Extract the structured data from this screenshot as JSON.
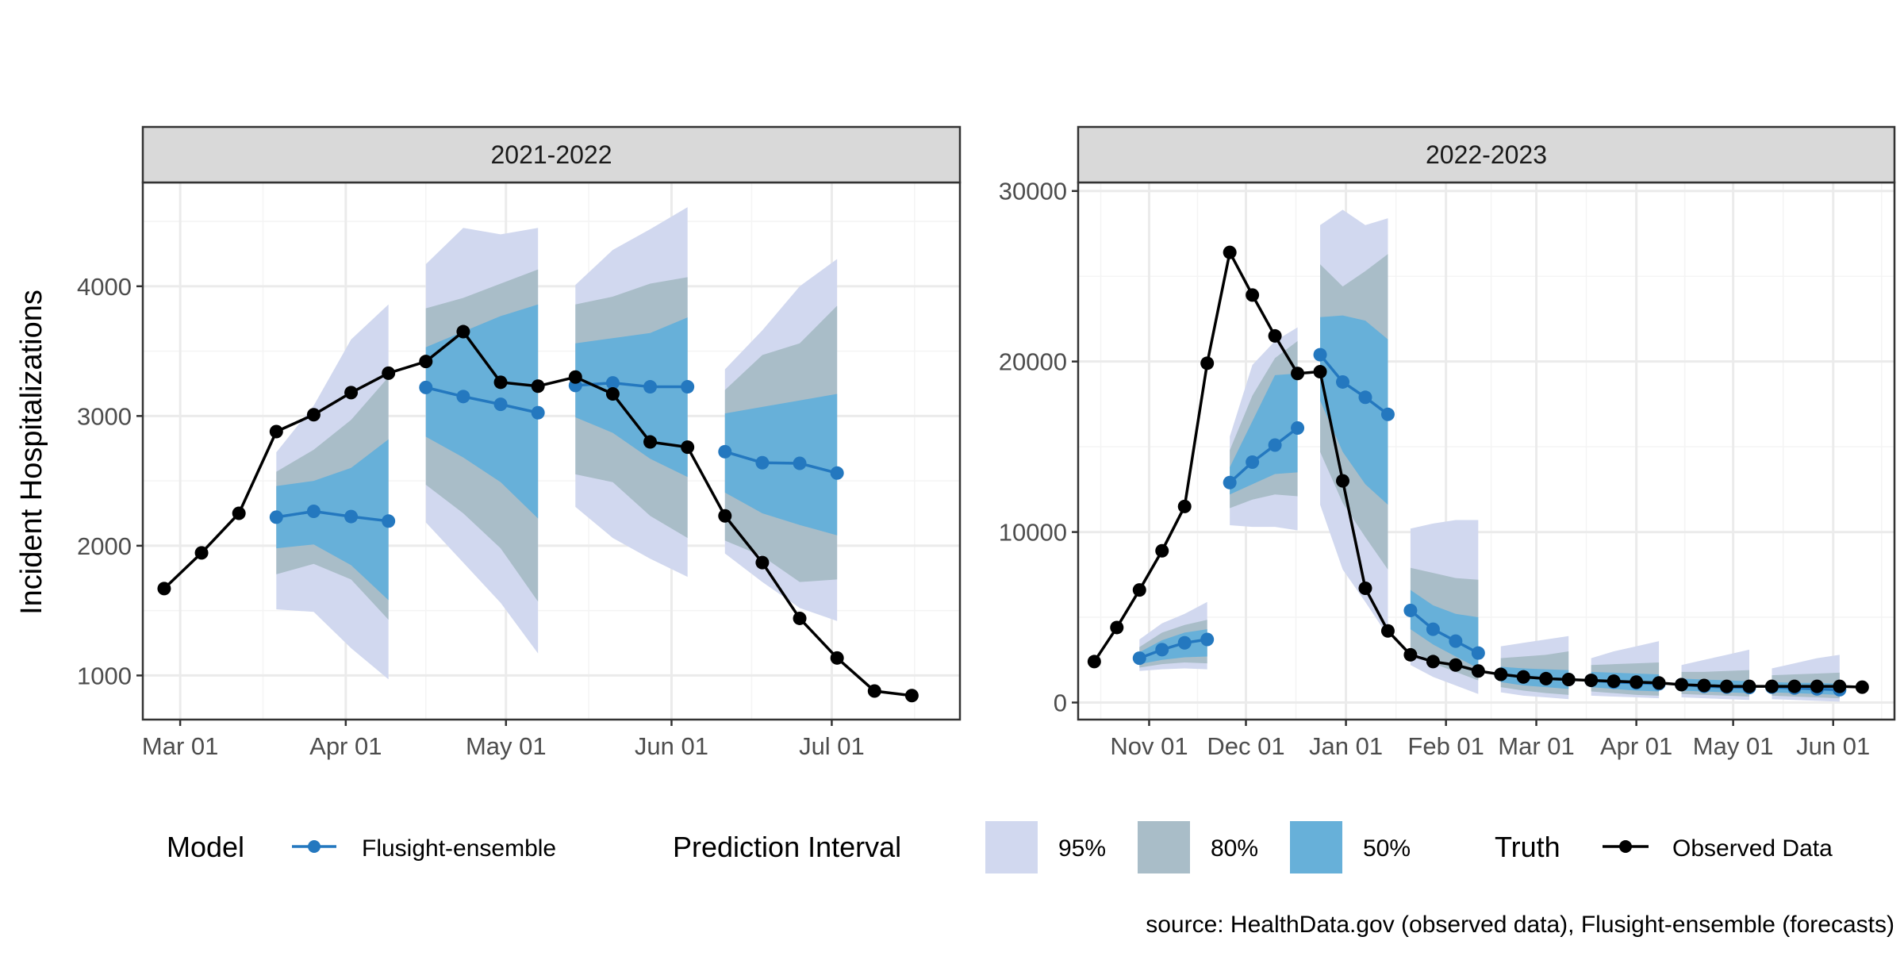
{
  "colors": {
    "pi95": "#d1d8ef",
    "pi80": "#a9bdc8",
    "pi50": "#67b0d9",
    "forecast": "#2478bf",
    "truth": "#000000",
    "strip": "#d9d9d9",
    "grid_major": "#ebebeb",
    "grid_minor": "#f4f4f4",
    "panel_border": "#333333",
    "axis_text": "#4d4d4d"
  },
  "ylabel": "Incident Hospitalizations",
  "source": "source: HealthData.gov (observed data), Flusight-ensemble (forecasts)",
  "legend": {
    "model_title": "Model",
    "model_item": "Flusight-ensemble",
    "pi_title": "Prediction Interval",
    "pi_items": [
      "95%",
      "80%",
      "50%"
    ],
    "truth_title": "Truth",
    "truth_item": "Observed Data"
  },
  "chart_data": [
    {
      "type": "line",
      "title": "2021-2022",
      "xlabel": "",
      "ylabel": "Incident Hospitalizations",
      "xlim": [
        "2022-02-22",
        "2022-07-25"
      ],
      "ylim": [
        660,
        4800
      ],
      "x_ticks": [
        "Mar 01",
        "Apr 01",
        "May 01",
        "Jun 01",
        "Jul 01"
      ],
      "x_tick_dates": [
        "2022-03-01",
        "2022-04-01",
        "2022-05-01",
        "2022-06-01",
        "2022-07-01"
      ],
      "y_ticks": [
        1000,
        2000,
        3000,
        4000
      ],
      "grid": true,
      "truth": {
        "name": "Observed Data",
        "x": [
          "2022-02-26",
          "2022-03-05",
          "2022-03-12",
          "2022-03-19",
          "2022-03-26",
          "2022-04-02",
          "2022-04-09",
          "2022-04-16",
          "2022-04-23",
          "2022-04-30",
          "2022-05-07",
          "2022-05-14",
          "2022-05-21",
          "2022-05-28",
          "2022-06-04",
          "2022-06-11",
          "2022-06-18",
          "2022-06-25",
          "2022-07-02",
          "2022-07-09",
          "2022-07-16"
        ],
        "y": [
          1670,
          1945,
          2250,
          2880,
          3010,
          3180,
          3330,
          3420,
          3650,
          3260,
          3230,
          3300,
          3170,
          2800,
          2760,
          2230,
          1870,
          1440,
          1135,
          880,
          845
        ]
      },
      "forecasts": [
        {
          "x": [
            "2022-03-19",
            "2022-03-26",
            "2022-04-02",
            "2022-04-09"
          ],
          "median": [
            2220,
            2265,
            2225,
            2190
          ],
          "pi50": [
            [
              1980,
              2460
            ],
            [
              2010,
              2500
            ],
            [
              1850,
              2600
            ],
            [
              1580,
              2820
            ]
          ],
          "pi80": [
            [
              1780,
              2570
            ],
            [
              1860,
              2740
            ],
            [
              1740,
              2970
            ],
            [
              1430,
              3300
            ]
          ],
          "pi95": [
            [
              1510,
              2720
            ],
            [
              1490,
              3080
            ],
            [
              1210,
              3590
            ],
            [
              970,
              3860
            ]
          ]
        },
        {
          "x": [
            "2022-04-16",
            "2022-04-23",
            "2022-04-30",
            "2022-05-07"
          ],
          "median": [
            3220,
            3150,
            3090,
            3025
          ],
          "pi50": [
            [
              2840,
              3530
            ],
            [
              2680,
              3650
            ],
            [
              2490,
              3770
            ],
            [
              2210,
              3860
            ]
          ],
          "pi80": [
            [
              2470,
              3830
            ],
            [
              2250,
              3910
            ],
            [
              1980,
              4020
            ],
            [
              1570,
              4130
            ]
          ],
          "pi95": [
            [
              2180,
              4170
            ],
            [
              1870,
              4450
            ],
            [
              1560,
              4400
            ],
            [
              1170,
              4450
            ]
          ]
        },
        {
          "x": [
            "2022-05-14",
            "2022-05-21",
            "2022-05-28",
            "2022-06-04"
          ],
          "median": [
            3235,
            3255,
            3225,
            3225
          ],
          "pi50": [
            [
              2990,
              3560
            ],
            [
              2870,
              3600
            ],
            [
              2670,
              3640
            ],
            [
              2530,
              3760
            ]
          ],
          "pi80": [
            [
              2550,
              3860
            ],
            [
              2490,
              3920
            ],
            [
              2230,
              4020
            ],
            [
              2060,
              4070
            ]
          ],
          "pi95": [
            [
              2300,
              4010
            ],
            [
              2060,
              4280
            ],
            [
              1900,
              4440
            ],
            [
              1760,
              4610
            ]
          ]
        },
        {
          "x": [
            "2022-06-11",
            "2022-06-18",
            "2022-06-25",
            "2022-07-02"
          ],
          "median": [
            2725,
            2640,
            2635,
            2560
          ],
          "pi50": [
            [
              2410,
              3020
            ],
            [
              2250,
              3070
            ],
            [
              2160,
              3120
            ],
            [
              2080,
              3170
            ]
          ],
          "pi80": [
            [
              2040,
              3200
            ],
            [
              1920,
              3470
            ],
            [
              1720,
              3560
            ],
            [
              1740,
              3850
            ]
          ],
          "pi95": [
            [
              1940,
              3360
            ],
            [
              1720,
              3660
            ],
            [
              1520,
              4000
            ],
            [
              1420,
              4210
            ]
          ]
        }
      ]
    },
    {
      "type": "line",
      "title": "2022-2023",
      "xlabel": "",
      "ylabel": "Incident Hospitalizations",
      "xlim": [
        "2022-10-10",
        "2023-06-20"
      ],
      "ylim": [
        -1000,
        30500
      ],
      "x_ticks": [
        "Nov 01",
        "Dec 01",
        "Jan 01",
        "Feb 01",
        "Mar 01",
        "Apr 01",
        "May 01",
        "Jun 01"
      ],
      "x_tick_dates": [
        "2022-11-01",
        "2022-12-01",
        "2023-01-01",
        "2023-02-01",
        "2023-03-01",
        "2023-04-01",
        "2023-05-01",
        "2023-06-01"
      ],
      "y_ticks": [
        0,
        10000,
        20000,
        30000
      ],
      "grid": true,
      "truth": {
        "name": "Observed Data",
        "x": [
          "2022-10-15",
          "2022-10-22",
          "2022-10-29",
          "2022-11-05",
          "2022-11-12",
          "2022-11-19",
          "2022-11-26",
          "2022-12-03",
          "2022-12-10",
          "2022-12-17",
          "2022-12-24",
          "2022-12-31",
          "2023-01-07",
          "2023-01-14",
          "2023-01-21",
          "2023-01-28",
          "2023-02-04",
          "2023-02-11",
          "2023-02-18",
          "2023-02-25",
          "2023-03-04",
          "2023-03-11",
          "2023-03-18",
          "2023-03-25",
          "2023-04-01",
          "2023-04-08",
          "2023-04-15",
          "2023-04-22",
          "2023-04-29",
          "2023-05-06",
          "2023-05-13",
          "2023-05-20",
          "2023-05-27",
          "2023-06-03",
          "2023-06-10"
        ],
        "y": [
          2400,
          4400,
          6600,
          8900,
          11500,
          19900,
          26400,
          23900,
          21500,
          19300,
          19400,
          13000,
          6700,
          4200,
          2800,
          2400,
          2200,
          1850,
          1650,
          1500,
          1400,
          1350,
          1300,
          1250,
          1200,
          1150,
          1050,
          1000,
          950,
          950,
          950,
          950,
          950,
          950,
          900
        ]
      },
      "forecasts": [
        {
          "x": [
            "2022-10-29",
            "2022-11-05",
            "2022-11-12",
            "2022-11-19"
          ],
          "median": [
            2600,
            3100,
            3500,
            3700
          ],
          "pi50": [
            [
              2250,
              2950
            ],
            [
              2500,
              3650
            ],
            [
              2650,
              4100
            ],
            [
              2700,
              4300
            ]
          ],
          "pi80": [
            [
              2050,
              3250
            ],
            [
              2250,
              4100
            ],
            [
              2350,
              4550
            ],
            [
              2300,
              4850
            ]
          ],
          "pi95": [
            [
              1850,
              3700
            ],
            [
              1950,
              4650
            ],
            [
              2000,
              5200
            ],
            [
              1950,
              5900
            ]
          ]
        },
        {
          "x": [
            "2022-11-26",
            "2022-12-03",
            "2022-12-10",
            "2022-12-17"
          ],
          "median": [
            12900,
            14100,
            15100,
            16100
          ],
          "pi50": [
            [
              12200,
              13800
            ],
            [
              12800,
              16500
            ],
            [
              13400,
              19200
            ],
            [
              13500,
              19300
            ]
          ],
          "pi80": [
            [
              11400,
              14800
            ],
            [
              11900,
              18000
            ],
            [
              12200,
              20200
            ],
            [
              12100,
              21200
            ]
          ],
          "pi95": [
            [
              10400,
              15600
            ],
            [
              10300,
              19800
            ],
            [
              10300,
              21200
            ],
            [
              10100,
              22000
            ]
          ]
        },
        {
          "x": [
            "2022-12-24",
            "2022-12-31",
            "2023-01-07",
            "2023-01-14"
          ],
          "median": [
            20400,
            18800,
            17900,
            16900
          ],
          "pi50": [
            [
              17700,
              22600
            ],
            [
              14700,
              22700
            ],
            [
              12800,
              22400
            ],
            [
              11600,
              21300
            ]
          ],
          "pi80": [
            [
              14700,
              25700
            ],
            [
              11700,
              24400
            ],
            [
              9700,
              25300
            ],
            [
              7800,
              26300
            ]
          ],
          "pi95": [
            [
              11600,
              28000
            ],
            [
              7800,
              28900
            ],
            [
              5900,
              28000
            ],
            [
              3900,
              28400
            ]
          ]
        },
        {
          "x": [
            "2023-01-21",
            "2023-01-28",
            "2023-02-04",
            "2023-02-11"
          ],
          "median": [
            5400,
            4300,
            3600,
            2900
          ],
          "pi50": [
            [
              4300,
              6600
            ],
            [
              3400,
              5700
            ],
            [
              2700,
              5200
            ],
            [
              2000,
              5000
            ]
          ],
          "pi80": [
            [
              3100,
              7900
            ],
            [
              2300,
              7600
            ],
            [
              1800,
              7300
            ],
            [
              1300,
              7200
            ]
          ],
          "pi95": [
            [
              2200,
              10200
            ],
            [
              1500,
              10500
            ],
            [
              1000,
              10700
            ],
            [
              500,
              10700
            ]
          ]
        },
        {
          "x": [
            "2023-02-18",
            "2023-02-25",
            "2023-03-04",
            "2023-03-11"
          ],
          "median": [
            1650,
            1500,
            1400,
            1350
          ],
          "pi50": [
            [
              1200,
              2100
            ],
            [
              1000,
              2000
            ],
            [
              900,
              1950
            ],
            [
              800,
              1900
            ]
          ],
          "pi80": [
            [
              900,
              2600
            ],
            [
              700,
              2700
            ],
            [
              550,
              2800
            ],
            [
              450,
              3000
            ]
          ],
          "pi95": [
            [
              600,
              3300
            ],
            [
              400,
              3500
            ],
            [
              300,
              3700
            ],
            [
              200,
              3900
            ]
          ]
        },
        {
          "x": [
            "2023-03-18",
            "2023-03-25",
            "2023-04-01",
            "2023-04-08"
          ],
          "median": [
            1300,
            1200,
            1150,
            1100
          ],
          "pi50": [
            [
              900,
              1800
            ],
            [
              800,
              1750
            ],
            [
              700,
              1700
            ],
            [
              650,
              1650
            ]
          ],
          "pi80": [
            [
              650,
              2200
            ],
            [
              550,
              2250
            ],
            [
              450,
              2300
            ],
            [
              400,
              2350
            ]
          ],
          "pi95": [
            [
              400,
              2600
            ],
            [
              350,
              3000
            ],
            [
              300,
              3300
            ],
            [
              250,
              3600
            ]
          ]
        },
        {
          "x": [
            "2023-04-15",
            "2023-04-22",
            "2023-04-29",
            "2023-05-06"
          ],
          "median": [
            1050,
            950,
            900,
            880
          ],
          "pi50": [
            [
              700,
              1400
            ],
            [
              650,
              1350
            ],
            [
              600,
              1300
            ],
            [
              550,
              1250
            ]
          ],
          "pi80": [
            [
              500,
              1800
            ],
            [
              450,
              1800
            ],
            [
              400,
              1850
            ],
            [
              350,
              1900
            ]
          ],
          "pi95": [
            [
              300,
              2200
            ],
            [
              250,
              2500
            ],
            [
              200,
              2800
            ],
            [
              150,
              3100
            ]
          ]
        },
        {
          "x": [
            "2023-05-13",
            "2023-05-20",
            "2023-05-27",
            "2023-06-03"
          ],
          "median": [
            900,
            850,
            800,
            750
          ],
          "pi50": [
            [
              600,
              1200
            ],
            [
              550,
              1150
            ],
            [
              500,
              1150
            ],
            [
              450,
              1100
            ]
          ],
          "pi80": [
            [
              400,
              1600
            ],
            [
              350,
              1650
            ],
            [
              300,
              1700
            ],
            [
              250,
              1750
            ]
          ],
          "pi95": [
            [
              200,
              2000
            ],
            [
              150,
              2300
            ],
            [
              100,
              2600
            ],
            [
              50,
              2800
            ]
          ]
        }
      ]
    }
  ]
}
